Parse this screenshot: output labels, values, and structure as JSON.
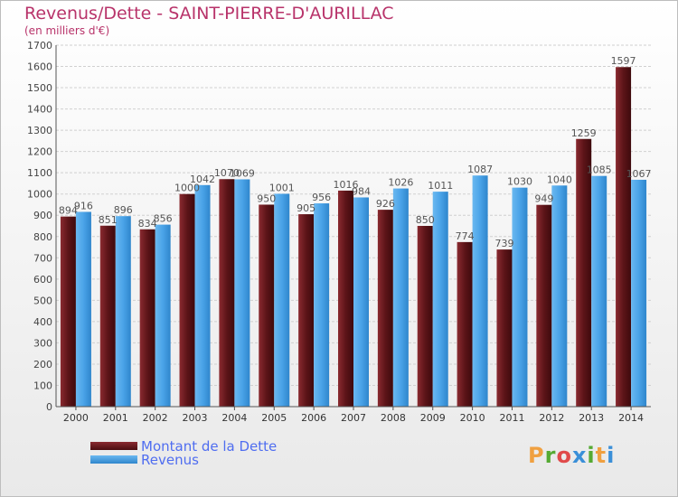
{
  "header": {
    "title": "Revenus/Dette - SAINT-PIERRE-D'AURILLAC",
    "subtitle": "(en milliers d'€)"
  },
  "legend": {
    "items": [
      {
        "label": "Montant de la Dette",
        "color": "#6b1a1f"
      },
      {
        "label": "Revenus",
        "color": "#4aa3e8"
      }
    ]
  },
  "logo": {
    "text": "Proxiti",
    "colors": [
      "#f0a040",
      "#55aa33",
      "#e04a4a",
      "#3a8fd8",
      "#55aa33",
      "#f0a040",
      "#3a8fd8"
    ]
  },
  "chart_data": {
    "type": "bar",
    "title": "Revenus/Dette - SAINT-PIERRE-D'AURILLAC",
    "ylabel": "(en milliers d'€)",
    "ylim": [
      0,
      1700
    ],
    "yticks": [
      0,
      100,
      200,
      300,
      400,
      500,
      600,
      700,
      800,
      900,
      1000,
      1100,
      1200,
      1300,
      1400,
      1500,
      1600,
      1700
    ],
    "grid": true,
    "legend_position": "bottom-left",
    "categories": [
      "2000",
      "2001",
      "2002",
      "2003",
      "2004",
      "2005",
      "2006",
      "2007",
      "2008",
      "2009",
      "2010",
      "2011",
      "2012",
      "2013",
      "2014"
    ],
    "series": [
      {
        "name": "Montant de la Dette",
        "color": "#6b1a1f",
        "values": [
          894,
          851,
          834,
          1000,
          1070,
          950,
          905,
          1016,
          926,
          850,
          774,
          739,
          949,
          1259,
          1597
        ]
      },
      {
        "name": "Revenus",
        "color": "#4aa3e8",
        "values": [
          916,
          896,
          856,
          1042,
          1069,
          1001,
          956,
          984,
          1026,
          1011,
          1087,
          1030,
          1040,
          1085,
          1067
        ]
      }
    ]
  }
}
